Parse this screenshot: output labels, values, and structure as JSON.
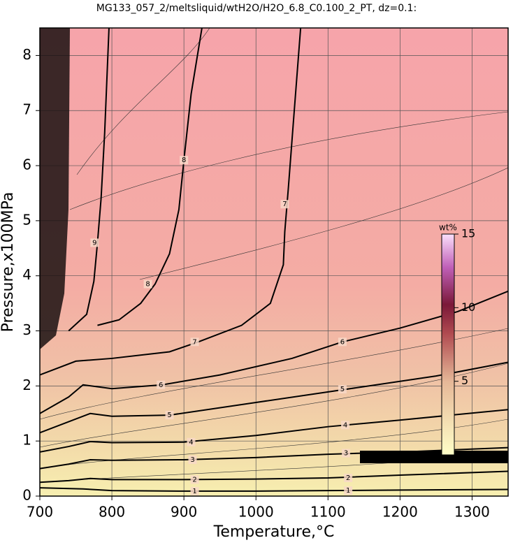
{
  "chart_data": {
    "type": "contour",
    "title": "MG133_057_2/meltsliquid/wtH2O/H2O_6.8_C0.100_2_PT, dz=0.1:",
    "x_label": "Temperature,°C",
    "y_label": "Pressure,x100MPa",
    "xlim": [
      700,
      1350
    ],
    "ylim": [
      0,
      8.5
    ],
    "xticks": [
      700,
      800,
      900,
      1000,
      1100,
      1200,
      1300
    ],
    "yticks": [
      0,
      1,
      2,
      3,
      4,
      5,
      6,
      7,
      8
    ],
    "grid": true,
    "contours": [
      {
        "level": 1,
        "x": [
          700,
          760,
          800,
          900,
          1000,
          1100,
          1200,
          1350
        ],
        "y": [
          0.15,
          0.13,
          0.1,
          0.09,
          0.09,
          0.1,
          0.11,
          0.12
        ],
        "label_x": [
          915,
          1128
        ],
        "label_y": [
          0.09,
          0.1
        ]
      },
      {
        "level": 2,
        "x": [
          700,
          740,
          770,
          800,
          900,
          1000,
          1100,
          1200,
          1350
        ],
        "y": [
          0.25,
          0.28,
          0.32,
          0.3,
          0.3,
          0.31,
          0.33,
          0.38,
          0.45
        ],
        "label_x": [
          915,
          1128
        ],
        "label_y": [
          0.3,
          0.33
        ]
      },
      {
        "level": 3,
        "x": [
          700,
          740,
          770,
          800,
          900,
          1000,
          1100,
          1200,
          1350
        ],
        "y": [
          0.5,
          0.58,
          0.66,
          0.65,
          0.66,
          0.7,
          0.76,
          0.8,
          0.88
        ],
        "label_x": [
          912,
          1125
        ],
        "label_y": [
          0.66,
          0.78
        ]
      },
      {
        "level": 4,
        "x": [
          700,
          740,
          770,
          800,
          900,
          1000,
          1100,
          1200,
          1350
        ],
        "y": [
          0.8,
          0.9,
          0.99,
          0.97,
          0.98,
          1.1,
          1.26,
          1.38,
          1.57
        ],
        "label_x": [
          910,
          1124
        ],
        "label_y": [
          0.98,
          1.29
        ]
      },
      {
        "level": 5,
        "x": [
          700,
          740,
          770,
          800,
          880,
          1000,
          1120,
          1250,
          1350
        ],
        "y": [
          1.15,
          1.35,
          1.5,
          1.45,
          1.47,
          1.7,
          1.93,
          2.18,
          2.43
        ],
        "label_x": [
          880,
          1120
        ],
        "label_y": [
          1.47,
          1.94
        ]
      },
      {
        "level": 6,
        "x": [
          700,
          740,
          760,
          800,
          870,
          950,
          1050,
          1120,
          1200,
          1280,
          1350
        ],
        "y": [
          1.5,
          1.8,
          2.02,
          1.95,
          2.02,
          2.2,
          2.5,
          2.8,
          3.05,
          3.35,
          3.72
        ],
        "label_x": [
          868,
          1120
        ],
        "label_y": [
          2.02,
          2.8
        ]
      },
      {
        "level": 7,
        "x": [
          700,
          750,
          800,
          880,
          920,
          980,
          1020,
          1038,
          1040,
          1045,
          1052,
          1062
        ],
        "y": [
          2.2,
          2.45,
          2.5,
          2.62,
          2.8,
          3.1,
          3.5,
          4.2,
          4.8,
          5.6,
          6.8,
          8.5
        ],
        "label_x": [
          915,
          1040
        ],
        "label_y": [
          2.8,
          5.3
        ]
      },
      {
        "level": 8,
        "x": [
          780,
          810,
          840,
          860,
          880,
          893,
          900,
          910,
          925
        ],
        "y": [
          3.1,
          3.2,
          3.5,
          3.85,
          4.4,
          5.2,
          6.1,
          7.3,
          8.5
        ],
        "label_x": [
          850,
          900
        ],
        "label_y": [
          3.85,
          6.1
        ]
      },
      {
        "level": 9,
        "x": [
          740,
          765,
          775,
          780,
          785,
          790,
          796
        ],
        "y": [
          3.0,
          3.3,
          3.9,
          4.6,
          5.4,
          6.6,
          8.5
        ],
        "label_x": [
          776
        ],
        "label_y": [
          4.6
        ]
      }
    ],
    "colorbar": {
      "label": "wt%",
      "lim": [
        0,
        15
      ],
      "ticks": [
        5,
        10,
        15
      ]
    }
  }
}
